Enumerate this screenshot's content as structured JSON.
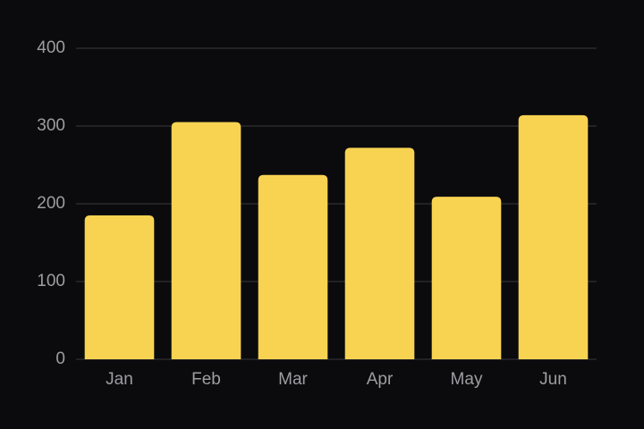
{
  "chart_data": {
    "type": "bar",
    "categories": [
      "Jan",
      "Feb",
      "Mar",
      "Apr",
      "May",
      "Jun"
    ],
    "values": [
      185,
      305,
      237,
      272,
      209,
      314
    ],
    "color": "#f8d352",
    "ylim": [
      0,
      400
    ],
    "yticks": [
      0,
      100,
      200,
      300,
      400
    ],
    "grid": true
  }
}
